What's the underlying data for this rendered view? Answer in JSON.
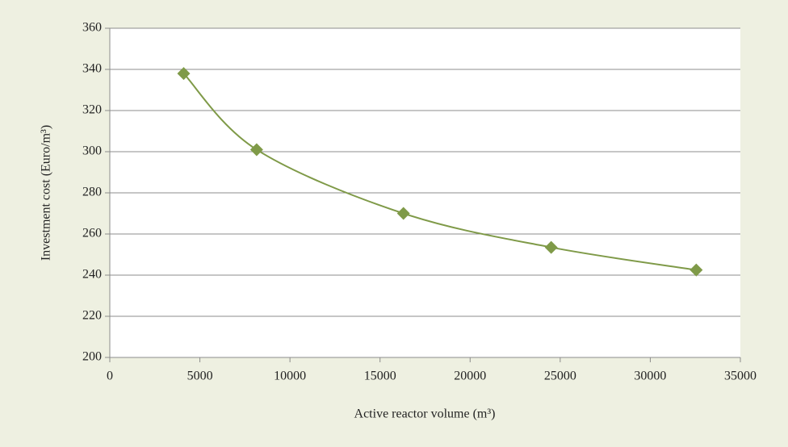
{
  "chart_data": {
    "type": "scatter",
    "x_label": "Active reactor volume (m³)",
    "y_label": "Investment cost (Euro/m³)",
    "x": [
      4100,
      8150,
      16300,
      24500,
      32550
    ],
    "values": [
      338,
      301,
      270,
      253.5,
      242.5
    ],
    "color": "#7f9a48",
    "smooth": true,
    "xlim": [
      0,
      35000
    ],
    "xticks": [
      0,
      5000,
      10000,
      15000,
      20000,
      25000,
      30000,
      35000
    ],
    "ylim": [
      200,
      360
    ],
    "yticks": [
      200,
      220,
      240,
      260,
      280,
      300,
      320,
      340,
      360
    ],
    "grid": true
  }
}
